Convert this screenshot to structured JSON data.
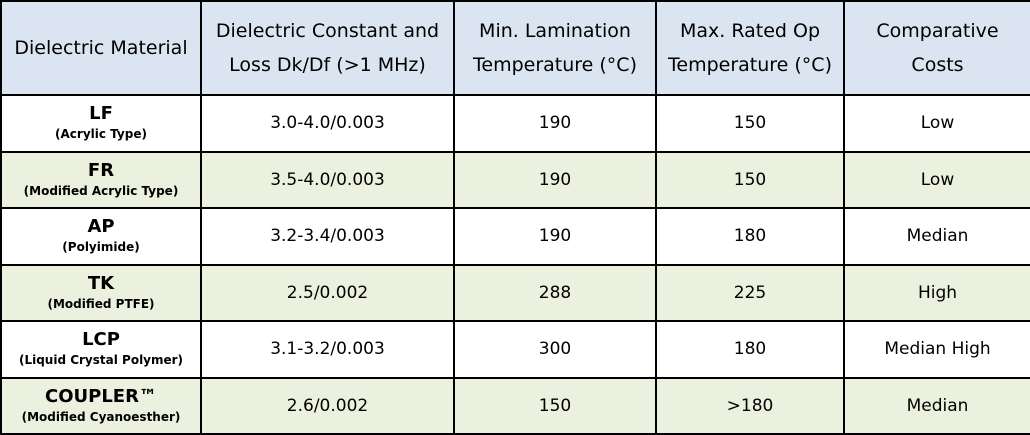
{
  "table": {
    "headers": [
      "Dielectric Material",
      "Dielectric Constant and Loss Dk/Df (>1 MHz)",
      "Min. Lamination Temperature (°C)",
      "Max. Rated Op Temperature (°C)",
      "Comparative Costs"
    ],
    "rows": [
      {
        "material": "LF",
        "type": "(Acrylic Type)",
        "dk": "3.0-4.0/0.003",
        "lamination": 190,
        "op": 150,
        "cost": "Low"
      },
      {
        "material": "FR",
        "type": "(Modified Acrylic Type)",
        "dk": "3.5-4.0/0.003",
        "lamination": 190,
        "op": 150,
        "cost": "Low"
      },
      {
        "material": "AP",
        "type": "(Polyimide)",
        "dk": "3.2-3.4/0.003",
        "lamination": 190,
        "op": 180,
        "cost": "Median"
      },
      {
        "material": "TK",
        "type": "(Modified PTFE)",
        "dk": "2.5/0.002",
        "lamination": 288,
        "op": 225,
        "cost": "High"
      },
      {
        "material": "LCP",
        "type": "(Liquid Crystal Polymer)",
        "dk": "3.1-3.2/0.003",
        "lamination": 300,
        "op": 180,
        "cost": "Median High"
      },
      {
        "material": "COUPLER™",
        "type": "(Modified Cyanoesther)",
        "dk": "2.6/0.002",
        "lamination": 150,
        "op": ">180",
        "cost": "Median"
      }
    ]
  }
}
